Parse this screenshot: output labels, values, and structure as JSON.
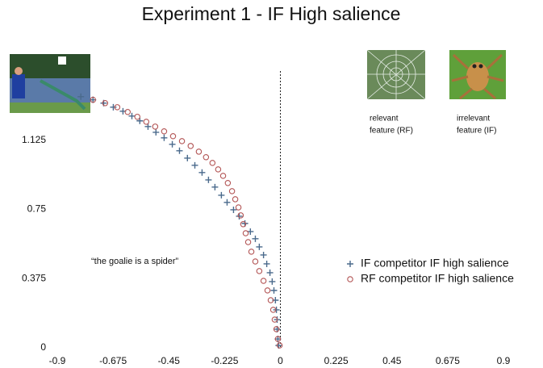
{
  "chart_data": {
    "type": "scatter",
    "title": "Experiment 1 - IF High salience",
    "annotation": "“the goalie is a spider”",
    "images": [
      {
        "caption": [
          "relevant",
          "feature (RF)"
        ]
      },
      {
        "caption": [
          "irrelevant",
          "feature (IF)"
        ]
      }
    ],
    "xlim": [
      -0.9,
      0.9
    ],
    "xticks": [
      -0.9,
      -0.675,
      -0.45,
      -0.225,
      0,
      0.225,
      0.45,
      0.675,
      0.9
    ],
    "ylim": [
      0,
      1.5
    ],
    "yticks": [
      0,
      0.375,
      0.75,
      1.125
    ],
    "grid": false,
    "reference_line_dashed": true,
    "legend": "right",
    "series": [
      {
        "name": "IF competitor IF high salience",
        "color": "#4a6a8c",
        "marker": "plus",
        "x": [
          -0.805,
          -0.756,
          -0.713,
          -0.674,
          -0.635,
          -0.599,
          -0.567,
          -0.534,
          -0.502,
          -0.469,
          -0.436,
          -0.407,
          -0.375,
          -0.345,
          -0.316,
          -0.29,
          -0.264,
          -0.238,
          -0.215,
          -0.189,
          -0.166,
          -0.143,
          -0.121,
          -0.101,
          -0.085,
          -0.068,
          -0.055,
          -0.042,
          -0.033,
          -0.026,
          -0.02,
          -0.016,
          -0.013,
          -0.013,
          -0.01,
          -0.007
        ],
        "values": [
          1.361,
          1.344,
          1.326,
          1.304,
          1.282,
          1.256,
          1.23,
          1.199,
          1.168,
          1.138,
          1.103,
          1.068,
          1.028,
          0.989,
          0.95,
          0.91,
          0.871,
          0.827,
          0.788,
          0.748,
          0.713,
          0.674,
          0.63,
          0.591,
          0.547,
          0.503,
          0.455,
          0.407,
          0.359,
          0.311,
          0.258,
          0.206,
          0.153,
          0.101,
          0.048,
          0.013
        ]
      },
      {
        "name": "RF competitor IF high salience",
        "color": "#b35555",
        "marker": "circle",
        "x": [
          -0.756,
          -0.707,
          -0.658,
          -0.616,
          -0.577,
          -0.541,
          -0.505,
          -0.469,
          -0.433,
          -0.397,
          -0.362,
          -0.329,
          -0.3,
          -0.274,
          -0.251,
          -0.231,
          -0.212,
          -0.195,
          -0.182,
          -0.169,
          -0.16,
          -0.15,
          -0.14,
          -0.13,
          -0.117,
          -0.101,
          -0.085,
          -0.068,
          -0.052,
          -0.039,
          -0.029,
          -0.023,
          -0.016,
          -0.01,
          -0.003
        ],
        "values": [
          1.344,
          1.326,
          1.304,
          1.278,
          1.252,
          1.225,
          1.199,
          1.173,
          1.147,
          1.12,
          1.094,
          1.063,
          1.033,
          1.002,
          0.967,
          0.932,
          0.893,
          0.849,
          0.805,
          0.761,
          0.718,
          0.67,
          0.621,
          0.573,
          0.521,
          0.468,
          0.416,
          0.363,
          0.311,
          0.258,
          0.206,
          0.153,
          0.101,
          0.048,
          0.013
        ]
      }
    ]
  }
}
